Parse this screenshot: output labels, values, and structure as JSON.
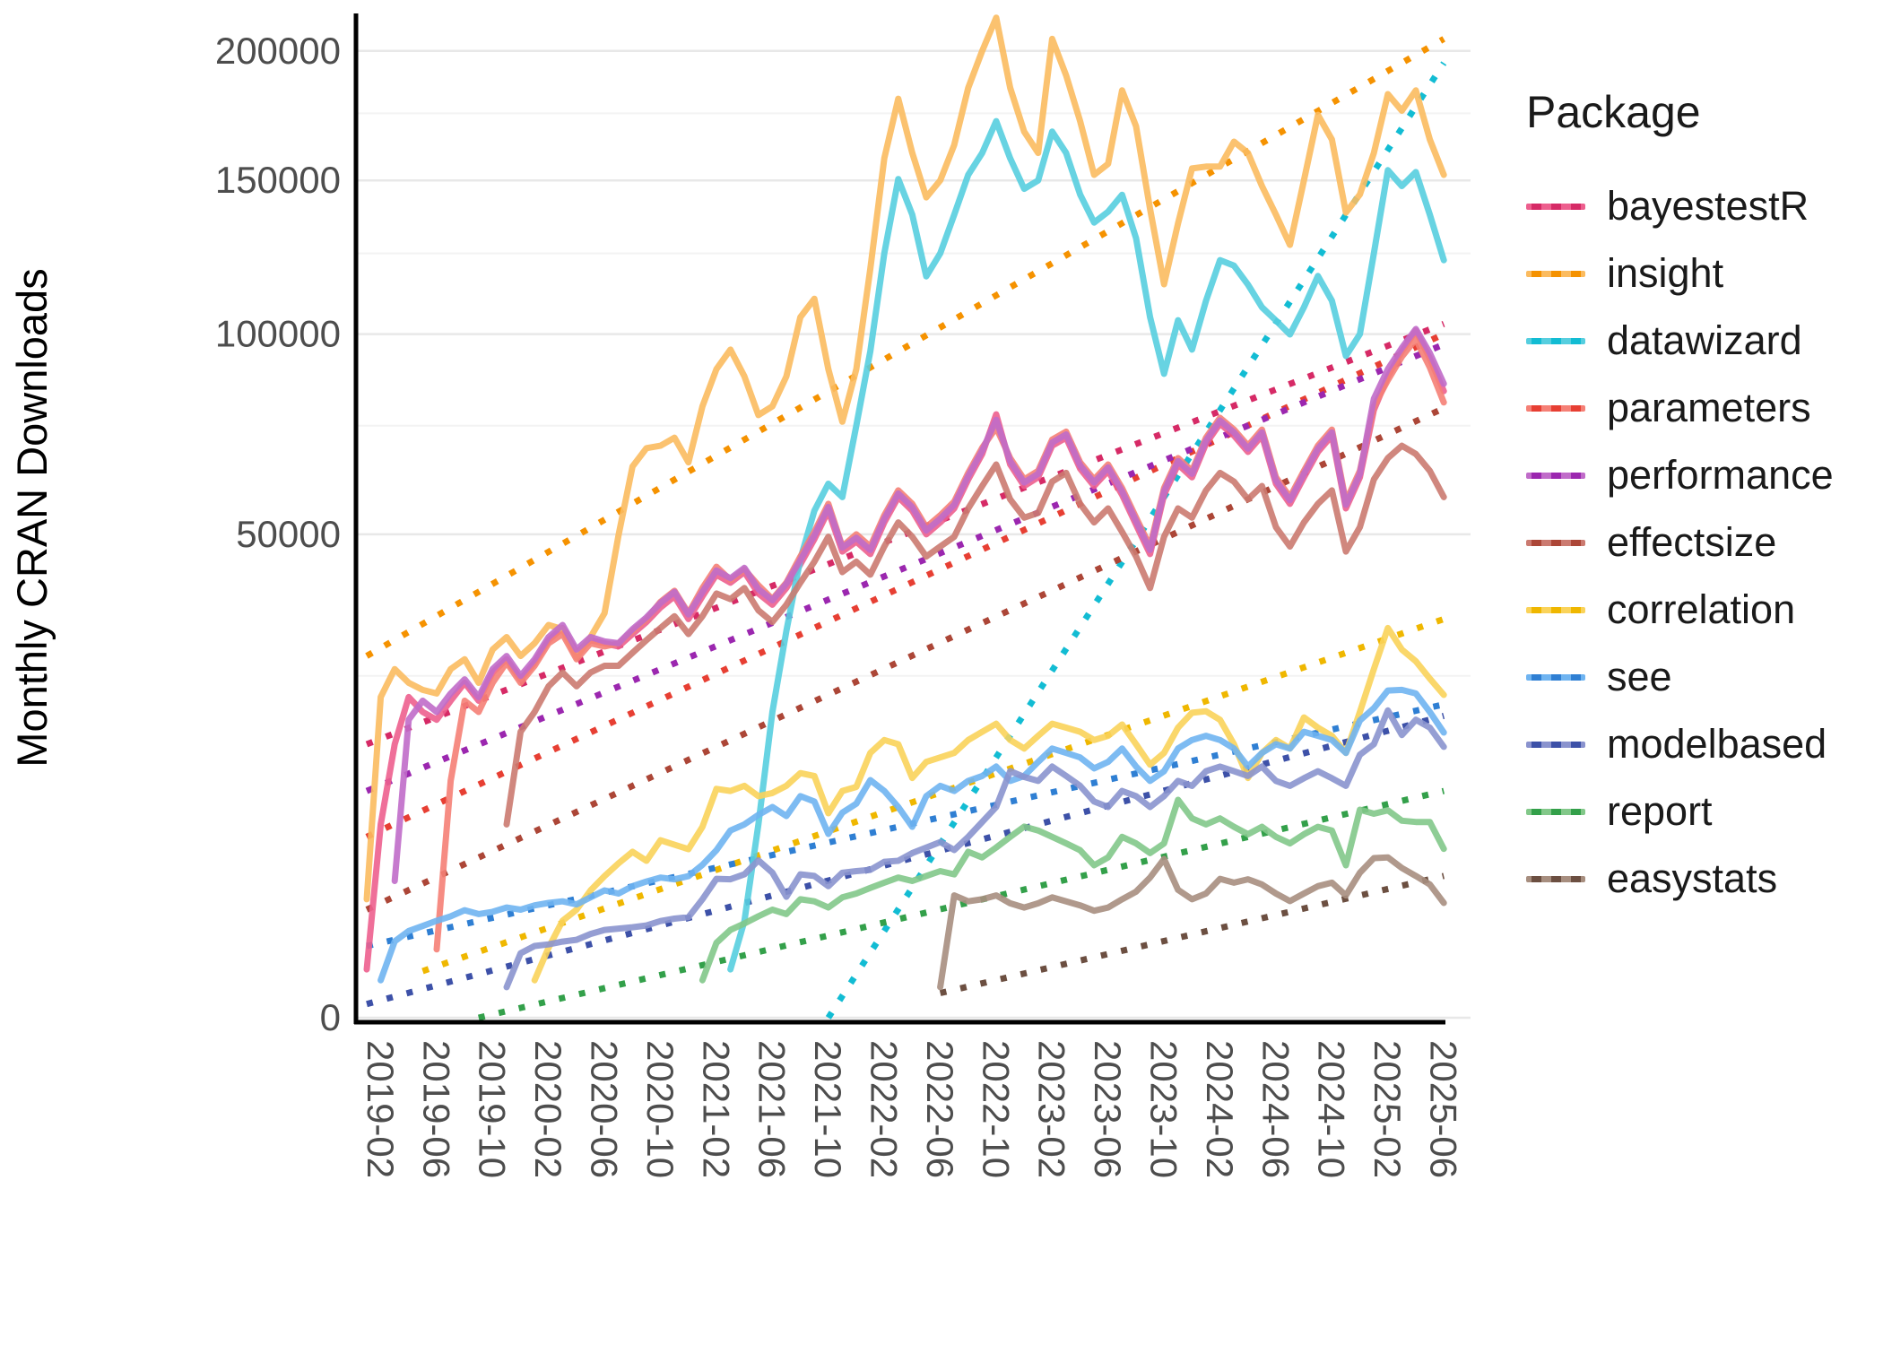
{
  "chart_data": {
    "type": "line",
    "title": "",
    "xlabel": "",
    "ylabel": "Monthly CRAN Downloads",
    "legend_title": "Package",
    "legend_position": "right",
    "grid": "major-and-minor-horizontal",
    "y_scale": "sqrt",
    "ylim": [
      0,
      215000
    ],
    "y_ticks": [
      0,
      50000,
      100000,
      150000,
      200000
    ],
    "y_minor_ticks": [
      25000,
      75000,
      125000,
      175000
    ],
    "months_start": "2019-01",
    "months_end": "2025-06",
    "x_tick_labels": [
      "2019-02",
      "2019-06",
      "2019-10",
      "2020-02",
      "2020-06",
      "2020-10",
      "2021-02",
      "2021-06",
      "2021-10",
      "2022-02",
      "2022-06",
      "2022-10",
      "2023-02",
      "2023-06",
      "2023-10",
      "2024-02",
      "2024-06",
      "2024-10",
      "2025-02",
      "2025-06"
    ],
    "x_tick_month_index": [
      1,
      5,
      9,
      13,
      17,
      21,
      25,
      29,
      33,
      37,
      41,
      45,
      49,
      53,
      57,
      61,
      65,
      69,
      73,
      77
    ],
    "axis_text_color": "#4d4d4d",
    "axis_line_color": "#000000",
    "grid_major_color": "#e8e8e8",
    "grid_minor_color": "#f3f3f3",
    "series": [
      {
        "name": "bayestestR",
        "color": "#ED5F8E",
        "trend_color": "#D62A66",
        "values": [
          500,
          8000,
          16000,
          22000,
          20000,
          19000,
          21500,
          24000,
          21500,
          25500,
          27500,
          24500,
          27000,
          30500,
          32500,
          28500,
          30500,
          30000,
          29500,
          31500,
          33500,
          36000,
          38000,
          34000,
          38000,
          42000,
          40500,
          42500,
          38500,
          36500,
          39500,
          44000,
          49000,
          55000,
          46500,
          48500,
          46000,
          52500,
          58000,
          55000,
          50000,
          52500,
          55500,
          62000,
          68000,
          77900,
          65500,
          60500,
          62500,
          70000,
          72000,
          64500,
          60500,
          64000,
          58500,
          52000,
          46000,
          58500,
          65500,
          62500,
          70500,
          75500,
          72500,
          68500,
          72500,
          61000,
          56500,
          62500,
          68500,
          72500,
          55500,
          62500,
          79000,
          88000,
          95000,
          101000,
          93000,
          84000
        ],
        "trend": {
          "m0": 0,
          "v0": 16000,
          "m1": 77,
          "v1": 103000
        }
      },
      {
        "name": "insight",
        "color": "#FBBB5F",
        "trend_color": "#F59200",
        "values": [
          3000,
          22000,
          26000,
          24000,
          23000,
          22500,
          26000,
          27500,
          24000,
          29000,
          31000,
          28000,
          30000,
          33000,
          32300,
          27800,
          31000,
          35000,
          49800,
          65000,
          69400,
          70000,
          72000,
          66000,
          80000,
          90000,
          95500,
          88000,
          77700,
          80000,
          88000,
          105000,
          110600,
          90000,
          76000,
          90000,
          120000,
          158000,
          180700,
          160000,
          144000,
          150000,
          163000,
          185000,
          200000,
          214000,
          185000,
          168000,
          160000,
          205000,
          190000,
          172000,
          152000,
          156000,
          184000,
          170000,
          140000,
          115100,
          135000,
          154300,
          155000,
          155000,
          164200,
          160000,
          148000,
          138000,
          127800,
          150000,
          174400,
          165000,
          138700,
          145000,
          160000,
          182500,
          176000,
          184000,
          165000,
          152000
        ],
        "trend": {
          "m0": 0,
          "v0": 28000,
          "m1": 77,
          "v1": 205000
        }
      },
      {
        "name": "datawizard",
        "color": "#56CEDF",
        "trend_color": "#12BCD3",
        "values": [
          null,
          null,
          null,
          null,
          null,
          null,
          null,
          null,
          null,
          null,
          null,
          null,
          null,
          null,
          null,
          null,
          null,
          null,
          null,
          null,
          null,
          null,
          null,
          null,
          null,
          null,
          500,
          2000,
          8000,
          20000,
          32000,
          45000,
          55000,
          61000,
          58000,
          75000,
          95000,
          125000,
          150500,
          138000,
          117600,
          125000,
          138000,
          152000,
          160000,
          172000,
          158000,
          147000,
          150000,
          168000,
          160000,
          145000,
          135300,
          139000,
          144900,
          130000,
          105000,
          88700,
          104100,
          95500,
          110000,
          122800,
          121000,
          115000,
          108000,
          104000,
          99900,
          108000,
          117700,
          110000,
          93700,
          100000,
          125000,
          153700,
          148000,
          153000,
          138000,
          122800
        ],
        "trend": {
          "m0": 33,
          "v0": 0,
          "m1": 77,
          "v1": 195000
        }
      },
      {
        "name": "parameters",
        "color": "#F58076",
        "trend_color": "#E73F33",
        "values": [
          null,
          null,
          null,
          null,
          null,
          1000,
          12000,
          21500,
          20000,
          24000,
          27000,
          24000,
          26500,
          30000,
          31500,
          27500,
          30000,
          29500,
          30000,
          32000,
          34000,
          37000,
          39000,
          35000,
          39500,
          43500,
          41000,
          43000,
          40000,
          37500,
          40500,
          45500,
          50500,
          56500,
          47500,
          50000,
          47500,
          54000,
          59500,
          56500,
          51500,
          54000,
          57000,
          63500,
          69500,
          74500,
          67000,
          62000,
          64000,
          71500,
          73500,
          66000,
          62000,
          65500,
          60000,
          53500,
          47500,
          60000,
          67000,
          64000,
          72000,
          77000,
          74000,
          70000,
          74000,
          62500,
          58000,
          64000,
          70000,
          74000,
          57000,
          64000,
          80000,
          87000,
          93500,
          98500,
          90500,
          81000
        ],
        "trend": {
          "m0": 0,
          "v0": 7000,
          "m1": 77,
          "v1": 100000
        }
      },
      {
        "name": "performance",
        "color": "#C06CC9",
        "trend_color": "#9B27AF",
        "values": [
          null,
          null,
          4000,
          19000,
          21500,
          20000,
          22500,
          24500,
          22000,
          26000,
          28000,
          25000,
          27500,
          31000,
          33000,
          29000,
          31000,
          30300,
          30000,
          32300,
          34300,
          36800,
          38800,
          34800,
          38800,
          42800,
          41300,
          43300,
          39300,
          37300,
          40300,
          44800,
          49800,
          55800,
          47300,
          49300,
          46800,
          53300,
          58800,
          55800,
          50800,
          53300,
          56300,
          62800,
          68800,
          76500,
          66300,
          61300,
          63300,
          70800,
          72800,
          65300,
          61300,
          64800,
          59300,
          52800,
          46800,
          59300,
          66300,
          63300,
          71300,
          76300,
          73300,
          69300,
          73300,
          61800,
          57300,
          63300,
          69300,
          73300,
          56300,
          63300,
          82000,
          90000,
          96000,
          101500,
          94500,
          86000
        ],
        "trend": {
          "m0": 0,
          "v0": 11000,
          "m1": 77,
          "v1": 97000
        }
      },
      {
        "name": "effectsize",
        "color": "#CB7A70",
        "trend_color": "#AC4637",
        "values": [
          null,
          null,
          null,
          null,
          null,
          null,
          null,
          null,
          null,
          null,
          8000,
          17500,
          20000,
          23500,
          25500,
          23500,
          25500,
          26500,
          26500,
          28500,
          30500,
          32500,
          34500,
          31500,
          34500,
          38500,
          37500,
          39500,
          35500,
          33500,
          36500,
          40500,
          44500,
          49500,
          42500,
          44500,
          42000,
          47500,
          52500,
          49500,
          45500,
          47500,
          49500,
          55500,
          60500,
          65500,
          57500,
          53500,
          54500,
          61500,
          63500,
          56500,
          52500,
          55500,
          50500,
          45500,
          39500,
          49500,
          55500,
          53500,
          59500,
          63500,
          61500,
          57500,
          60500,
          51500,
          47500,
          52500,
          56500,
          59500,
          46500,
          51500,
          62000,
          67000,
          70000,
          68000,
          64000,
          58000
        ],
        "trend": {
          "m0": 0,
          "v0": 2500,
          "m1": 77,
          "v1": 79500
        }
      },
      {
        "name": "correlation",
        "color": "#FAD35A",
        "trend_color": "#EFB700",
        "values": [
          null,
          null,
          null,
          null,
          null,
          null,
          null,
          null,
          null,
          null,
          null,
          null,
          300,
          1050,
          2010,
          2500,
          3470,
          4290,
          5100,
          5890,
          5270,
          6740,
          6400,
          6080,
          7800,
          11200,
          11000,
          11500,
          10500,
          10800,
          11500,
          12800,
          12500,
          8940,
          11000,
          11400,
          15000,
          16500,
          16000,
          12300,
          14000,
          14500,
          15000,
          16500,
          17500,
          18500,
          16500,
          15500,
          17000,
          18500,
          18000,
          17500,
          16500,
          17000,
          18400,
          16000,
          13700,
          15000,
          18000,
          19900,
          20100,
          19000,
          16000,
          12300,
          15000,
          16500,
          15500,
          19300,
          18000,
          17000,
          15000,
          20000,
          26000,
          32500,
          29000,
          27200,
          24600,
          22300
        ],
        "trend": {
          "m0": 4,
          "v0": 465,
          "m1": 77,
          "v1": 34000
        }
      },
      {
        "name": "see",
        "color": "#6FB4F1",
        "trend_color": "#2F7FD3",
        "values": [
          null,
          300,
          1250,
          1610,
          1800,
          2010,
          2200,
          2475,
          2300,
          2400,
          2600,
          2500,
          2700,
          2820,
          2900,
          2750,
          3100,
          3470,
          3300,
          3700,
          3970,
          4200,
          4100,
          4290,
          5000,
          6000,
          7500,
          8000,
          8800,
          9500,
          8700,
          10500,
          10000,
          7230,
          9000,
          9800,
          12080,
          11000,
          9500,
          7800,
          10500,
          11500,
          11000,
          12000,
          12500,
          13500,
          12000,
          12500,
          14000,
          15500,
          15000,
          14500,
          13300,
          14000,
          15500,
          13500,
          12000,
          13000,
          15500,
          16500,
          17000,
          16500,
          15500,
          13500,
          15000,
          16000,
          15500,
          17500,
          17000,
          16500,
          15000,
          18900,
          20500,
          22900,
          23000,
          22500,
          20000,
          17400
        ],
        "trend": {
          "m0": 0,
          "v0": 1100,
          "m1": 77,
          "v1": 21000
        }
      },
      {
        "name": "modelbased",
        "color": "#8A93CE",
        "trend_color": "#3D51A8",
        "values": [
          null,
          null,
          null,
          null,
          null,
          null,
          null,
          null,
          null,
          null,
          200,
          890,
          1100,
          1150,
          1240,
          1300,
          1500,
          1650,
          1700,
          1750,
          1820,
          2000,
          2100,
          2160,
          3000,
          4130,
          4100,
          4400,
          5300,
          4500,
          3130,
          4400,
          4300,
          3700,
          4500,
          4600,
          4680,
          5200,
          5270,
          5800,
          6200,
          6600,
          6020,
          7000,
          8200,
          9500,
          13010,
          12400,
          12000,
          13500,
          12500,
          11500,
          10000,
          9500,
          11000,
          10500,
          9500,
          10500,
          12000,
          11500,
          13000,
          13500,
          13000,
          12500,
          13500,
          12000,
          11500,
          12270,
          13000,
          12270,
          11500,
          14800,
          16000,
          20200,
          17100,
          19000,
          18000,
          15700
        ],
        "trend": {
          "m0": 0,
          "v0": 40,
          "m1": 77,
          "v1": 19500
        }
      },
      {
        "name": "report",
        "color": "#82C889",
        "trend_color": "#33A04A",
        "values": [
          null,
          null,
          null,
          null,
          null,
          null,
          null,
          null,
          null,
          null,
          null,
          null,
          null,
          null,
          null,
          null,
          null,
          null,
          null,
          null,
          null,
          null,
          null,
          null,
          300,
          1200,
          1650,
          1900,
          2200,
          2500,
          2300,
          3000,
          2900,
          2600,
          3100,
          3300,
          3600,
          3900,
          4200,
          4000,
          4300,
          4600,
          4400,
          5890,
          5500,
          6200,
          7000,
          7810,
          7500,
          7000,
          6500,
          6000,
          4970,
          5500,
          7000,
          6500,
          5800,
          6500,
          10160,
          8500,
          8000,
          8500,
          7800,
          7200,
          7800,
          7000,
          6500,
          7200,
          7800,
          7500,
          4970,
          9260,
          8900,
          9200,
          8300,
          8200,
          8200,
          6100
        ],
        "trend": {
          "m0": 8,
          "v0": 0,
          "m1": 77,
          "v1": 11000
        }
      },
      {
        "name": "easystats",
        "color": "#A78E7F",
        "trend_color": "#6C4F41",
        "values": [
          null,
          null,
          null,
          null,
          null,
          null,
          null,
          null,
          null,
          null,
          null,
          null,
          null,
          null,
          null,
          null,
          null,
          null,
          null,
          null,
          null,
          null,
          null,
          null,
          null,
          null,
          null,
          null,
          null,
          null,
          null,
          null,
          null,
          null,
          null,
          null,
          null,
          null,
          null,
          null,
          null,
          200,
          3200,
          2900,
          3000,
          3200,
          2800,
          2600,
          2800,
          3100,
          2900,
          2700,
          2450,
          2600,
          3000,
          3400,
          4200,
          5390,
          3500,
          3000,
          3300,
          4130,
          3900,
          4100,
          3800,
          3300,
          2910,
          3300,
          3700,
          3900,
          3200,
          4500,
          5450,
          5500,
          4800,
          4300,
          3800,
          2820
        ],
        "trend": {
          "m0": 41,
          "v0": 130,
          "m1": 77,
          "v1": 4300
        }
      }
    ]
  }
}
